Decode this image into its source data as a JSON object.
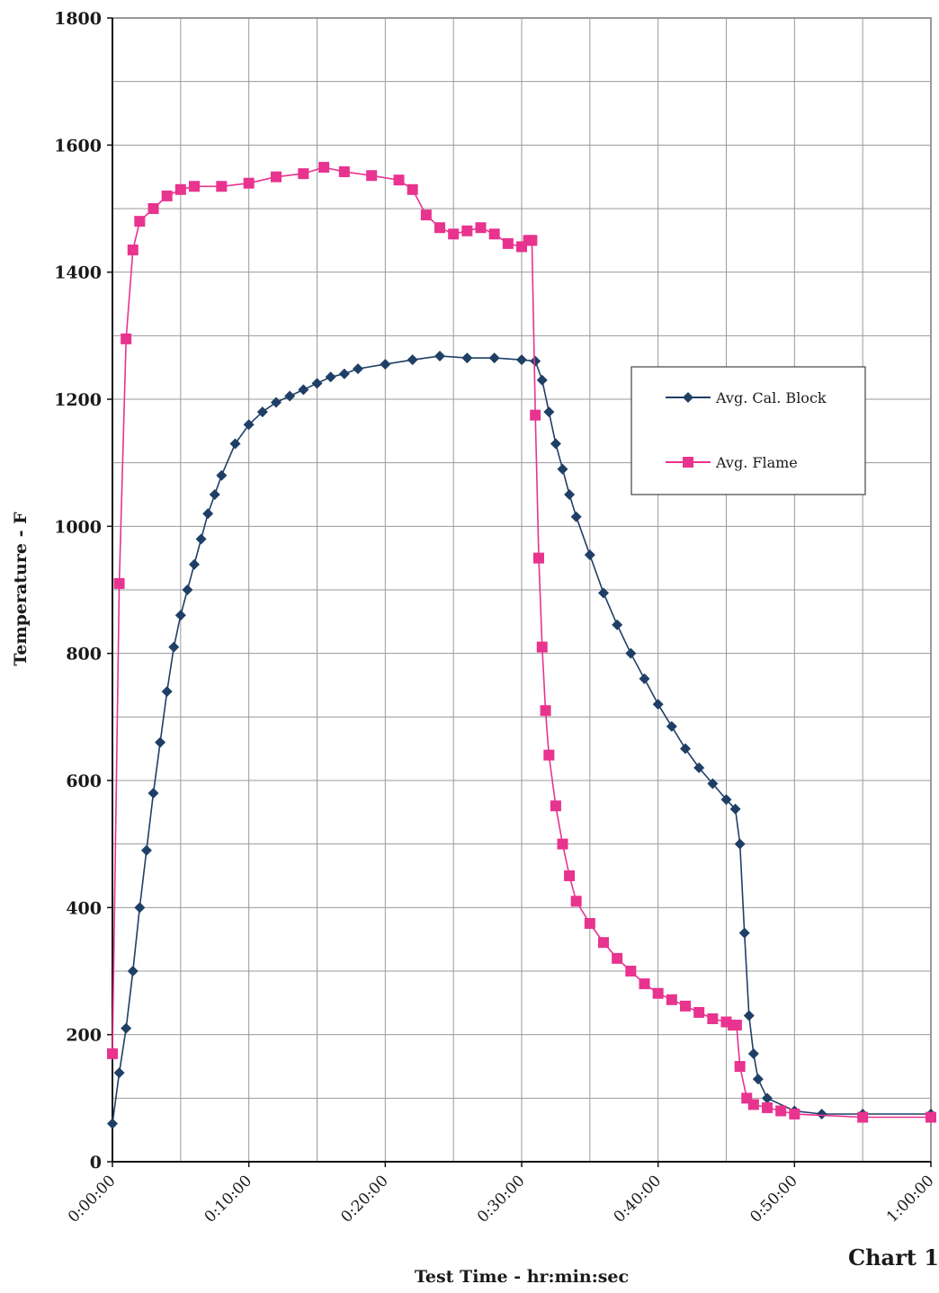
{
  "chart_data": {
    "type": "line",
    "caption": "Chart 1",
    "xlabel": "Test Time - hr:min:sec",
    "ylabel": "Temperature - F",
    "xlim": [
      "0:00:00",
      "1:00:00"
    ],
    "ylim": [
      0,
      1800
    ],
    "x_ticks": [
      "0:00:00",
      "0:10:00",
      "0:20:00",
      "0:30:00",
      "0:40:00",
      "0:50:00",
      "1:00:00"
    ],
    "y_ticks": [
      0,
      200,
      400,
      600,
      800,
      1000,
      1200,
      1400,
      1600,
      1800
    ],
    "grid": true,
    "legend_position": "right",
    "series": [
      {
        "name": "Avg. Cal. Block",
        "color": "#1f3f66",
        "marker": "diamond",
        "x": [
          "0:00:00",
          "0:00:30",
          "0:01:00",
          "0:01:30",
          "0:02:00",
          "0:02:30",
          "0:03:00",
          "0:03:30",
          "0:04:00",
          "0:04:30",
          "0:05:00",
          "0:05:30",
          "0:06:00",
          "0:06:30",
          "0:07:00",
          "0:07:30",
          "0:08:00",
          "0:09:00",
          "0:10:00",
          "0:11:00",
          "0:12:00",
          "0:13:00",
          "0:14:00",
          "0:15:00",
          "0:16:00",
          "0:17:00",
          "0:18:00",
          "0:20:00",
          "0:22:00",
          "0:24:00",
          "0:26:00",
          "0:28:00",
          "0:30:00",
          "0:31:00",
          "0:31:30",
          "0:32:00",
          "0:32:30",
          "0:33:00",
          "0:33:30",
          "0:34:00",
          "0:35:00",
          "0:36:00",
          "0:37:00",
          "0:38:00",
          "0:39:00",
          "0:40:00",
          "0:41:00",
          "0:42:00",
          "0:43:00",
          "0:44:00",
          "0:45:00",
          "0:45:40",
          "0:46:00",
          "0:46:20",
          "0:46:40",
          "0:47:00",
          "0:47:20",
          "0:48:00",
          "0:50:00",
          "0:52:00",
          "0:55:00",
          "1:00:00"
        ],
        "values": [
          60,
          140,
          210,
          300,
          400,
          490,
          580,
          660,
          740,
          810,
          860,
          900,
          940,
          980,
          1020,
          1050,
          1080,
          1130,
          1160,
          1180,
          1195,
          1205,
          1215,
          1225,
          1235,
          1240,
          1248,
          1255,
          1262,
          1268,
          1265,
          1265,
          1262,
          1260,
          1230,
          1180,
          1130,
          1090,
          1050,
          1015,
          955,
          895,
          845,
          800,
          760,
          720,
          685,
          650,
          620,
          595,
          570,
          555,
          500,
          360,
          230,
          170,
          130,
          100,
          80,
          75,
          75,
          75
        ]
      },
      {
        "name": "Avg. Flame",
        "color": "#e8338f",
        "marker": "square",
        "x": [
          "0:00:00",
          "0:00:30",
          "0:01:00",
          "0:01:30",
          "0:02:00",
          "0:03:00",
          "0:04:00",
          "0:05:00",
          "0:06:00",
          "0:08:00",
          "0:10:00",
          "0:12:00",
          "0:14:00",
          "0:15:30",
          "0:17:00",
          "0:19:00",
          "0:21:00",
          "0:22:00",
          "0:23:00",
          "0:24:00",
          "0:25:00",
          "0:26:00",
          "0:27:00",
          "0:28:00",
          "0:29:00",
          "0:30:00",
          "0:30:30",
          "0:30:45",
          "0:31:00",
          "0:31:15",
          "0:31:30",
          "0:31:45",
          "0:32:00",
          "0:32:30",
          "0:33:00",
          "0:33:30",
          "0:34:00",
          "0:35:00",
          "0:36:00",
          "0:37:00",
          "0:38:00",
          "0:39:00",
          "0:40:00",
          "0:41:00",
          "0:42:00",
          "0:43:00",
          "0:44:00",
          "0:45:00",
          "0:45:30",
          "0:45:45",
          "0:46:00",
          "0:46:30",
          "0:47:00",
          "0:48:00",
          "0:49:00",
          "0:50:00",
          "0:55:00",
          "1:00:00"
        ],
        "values": [
          170,
          910,
          1295,
          1435,
          1480,
          1500,
          1520,
          1530,
          1535,
          1535,
          1540,
          1550,
          1555,
          1565,
          1558,
          1552,
          1545,
          1530,
          1490,
          1470,
          1460,
          1465,
          1470,
          1460,
          1445,
          1440,
          1450,
          1450,
          1175,
          950,
          810,
          710,
          640,
          560,
          500,
          450,
          410,
          375,
          345,
          320,
          300,
          280,
          265,
          255,
          245,
          235,
          225,
          220,
          215,
          215,
          150,
          100,
          90,
          85,
          80,
          75,
          70,
          70
        ]
      }
    ]
  }
}
